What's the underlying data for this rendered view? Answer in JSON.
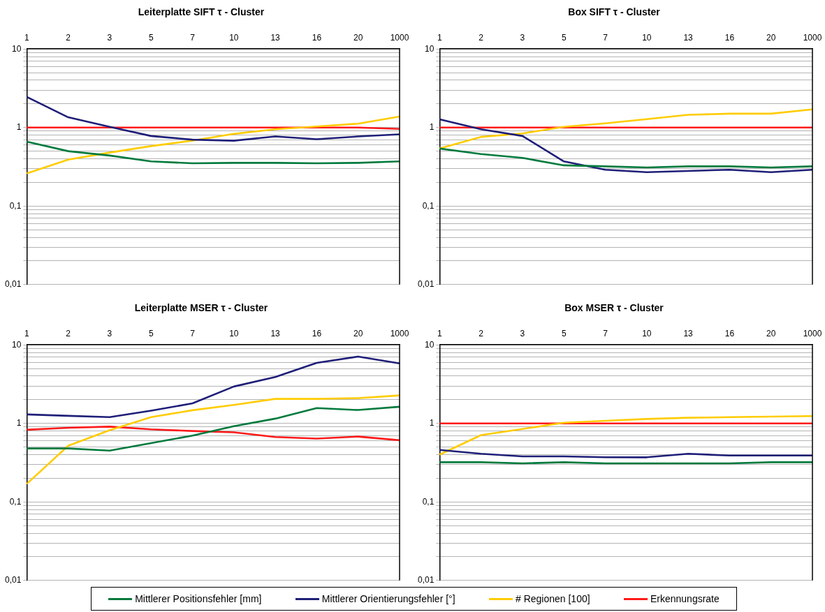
{
  "chart_data": [
    {
      "type": "line",
      "title": "Leiterplatte SIFT τ - Cluster",
      "categories": [
        "1",
        "2",
        "3",
        "5",
        "7",
        "10",
        "13",
        "16",
        "20",
        "1000"
      ],
      "log": true,
      "grid": "y",
      "legend": "bottom",
      "marker": "none",
      "ylim": [
        0.01,
        10
      ],
      "yticks": [
        {
          "value": 0.01,
          "label": "0,01"
        },
        {
          "value": 0.02,
          "label": null
        },
        {
          "value": 0.03,
          "label": null
        },
        {
          "value": 0.04,
          "label": null
        },
        {
          "value": 0.05,
          "label": null
        },
        {
          "value": 0.06,
          "label": null
        },
        {
          "value": 0.07,
          "label": null
        },
        {
          "value": 0.08,
          "label": null
        },
        {
          "value": 0.09,
          "label": null
        },
        {
          "value": 0.1,
          "label": "0,1"
        },
        {
          "value": 0.2,
          "label": null
        },
        {
          "value": 0.3,
          "label": null
        },
        {
          "value": 0.4,
          "label": null
        },
        {
          "value": 0.5,
          "label": null
        },
        {
          "value": 0.6,
          "label": null
        },
        {
          "value": 0.7,
          "label": null
        },
        {
          "value": 0.8,
          "label": null
        },
        {
          "value": 0.9,
          "label": null
        },
        {
          "value": 1,
          "label": "1"
        },
        {
          "value": 2,
          "label": null
        },
        {
          "value": 3,
          "label": null
        },
        {
          "value": 4,
          "label": null
        },
        {
          "value": 5,
          "label": null
        },
        {
          "value": 6,
          "label": null
        },
        {
          "value": 7,
          "label": null
        },
        {
          "value": 8,
          "label": null
        },
        {
          "value": 9,
          "label": null
        },
        {
          "value": 10,
          "label": "10"
        }
      ],
      "series": [
        {
          "name": "Mittlerer Positionsfehler [mm]",
          "color": "#007a3d",
          "values": [
            0.66,
            0.5,
            0.44,
            0.37,
            0.35,
            0.355,
            0.355,
            0.35,
            0.355,
            0.37
          ]
        },
        {
          "name": "Mittlerer Orientierungsfehler [°]",
          "color": "#1f1f78",
          "values": [
            2.45,
            1.35,
            1.02,
            0.78,
            0.7,
            0.68,
            0.77,
            0.71,
            0.77,
            0.82
          ]
        },
        {
          "name": "# Regionen [100]",
          "color": "#ffcc00",
          "values": [
            0.26,
            0.39,
            0.48,
            0.58,
            0.68,
            0.83,
            0.95,
            1.03,
            1.12,
            1.38
          ]
        },
        {
          "name": "Erkennungsrate",
          "color": "#ff1a1a",
          "values": [
            1,
            1,
            1,
            1,
            1,
            1,
            1,
            1,
            1,
            0.96
          ]
        }
      ]
    },
    {
      "type": "line",
      "title": "Box SIFT τ - Cluster",
      "categories": [
        "1",
        "2",
        "3",
        "5",
        "7",
        "10",
        "13",
        "16",
        "20",
        "1000"
      ],
      "log": true,
      "grid": "y",
      "legend": false,
      "marker": "none",
      "ylim": [
        0.01,
        10
      ],
      "yticks": [
        {
          "value": 0.01,
          "label": "0,01"
        },
        {
          "value": 0.02,
          "label": null
        },
        {
          "value": 0.03,
          "label": null
        },
        {
          "value": 0.04,
          "label": null
        },
        {
          "value": 0.05,
          "label": null
        },
        {
          "value": 0.06,
          "label": null
        },
        {
          "value": 0.07,
          "label": null
        },
        {
          "value": 0.08,
          "label": null
        },
        {
          "value": 0.09,
          "label": null
        },
        {
          "value": 0.1,
          "label": "0,1"
        },
        {
          "value": 0.2,
          "label": null
        },
        {
          "value": 0.3,
          "label": null
        },
        {
          "value": 0.4,
          "label": null
        },
        {
          "value": 0.5,
          "label": null
        },
        {
          "value": 0.6,
          "label": null
        },
        {
          "value": 0.7,
          "label": null
        },
        {
          "value": 0.8,
          "label": null
        },
        {
          "value": 0.9,
          "label": null
        },
        {
          "value": 1,
          "label": "1"
        },
        {
          "value": 2,
          "label": null
        },
        {
          "value": 3,
          "label": null
        },
        {
          "value": 4,
          "label": null
        },
        {
          "value": 5,
          "label": null
        },
        {
          "value": 6,
          "label": null
        },
        {
          "value": 7,
          "label": null
        },
        {
          "value": 8,
          "label": null
        },
        {
          "value": 9,
          "label": null
        },
        {
          "value": 10,
          "label": "10"
        }
      ],
      "series": [
        {
          "color": "#007a3d",
          "values": [
            0.54,
            0.46,
            0.41,
            0.33,
            0.32,
            0.31,
            0.32,
            0.32,
            0.31,
            0.32
          ]
        },
        {
          "color": "#1f1f78",
          "values": [
            1.27,
            0.95,
            0.78,
            0.37,
            0.29,
            0.27,
            0.28,
            0.29,
            0.27,
            0.29
          ]
        },
        {
          "color": "#ffcc00",
          "values": [
            0.54,
            0.76,
            0.84,
            1.02,
            1.13,
            1.28,
            1.45,
            1.5,
            1.5,
            1.7
          ]
        },
        {
          "color": "#ff1a1a",
          "values": [
            1,
            1,
            1,
            1,
            1,
            1,
            1,
            1,
            1,
            1
          ]
        }
      ]
    },
    {
      "type": "line",
      "title": "Leiterplatte MSER τ - Cluster",
      "categories": [
        "1",
        "2",
        "3",
        "5",
        "7",
        "10",
        "13",
        "16",
        "20",
        "1000"
      ],
      "log": true,
      "grid": "y",
      "legend": false,
      "marker": "none",
      "ylim": [
        0.01,
        10
      ],
      "yticks": [
        {
          "value": 0.01,
          "label": "0,01"
        },
        {
          "value": 0.02,
          "label": null
        },
        {
          "value": 0.03,
          "label": null
        },
        {
          "value": 0.04,
          "label": null
        },
        {
          "value": 0.05,
          "label": null
        },
        {
          "value": 0.06,
          "label": null
        },
        {
          "value": 0.07,
          "label": null
        },
        {
          "value": 0.08,
          "label": null
        },
        {
          "value": 0.09,
          "label": null
        },
        {
          "value": 0.1,
          "label": "0,1"
        },
        {
          "value": 0.2,
          "label": null
        },
        {
          "value": 0.3,
          "label": null
        },
        {
          "value": 0.4,
          "label": null
        },
        {
          "value": 0.5,
          "label": null
        },
        {
          "value": 0.6,
          "label": null
        },
        {
          "value": 0.7,
          "label": null
        },
        {
          "value": 0.8,
          "label": null
        },
        {
          "value": 0.9,
          "label": null
        },
        {
          "value": 1,
          "label": "1"
        },
        {
          "value": 2,
          "label": null
        },
        {
          "value": 3,
          "label": null
        },
        {
          "value": 4,
          "label": null
        },
        {
          "value": 5,
          "label": null
        },
        {
          "value": 6,
          "label": null
        },
        {
          "value": 7,
          "label": null
        },
        {
          "value": 8,
          "label": null
        },
        {
          "value": 9,
          "label": null
        },
        {
          "value": 10,
          "label": "10"
        }
      ],
      "series": [
        {
          "color": "#007a3d",
          "values": [
            0.48,
            0.48,
            0.45,
            0.56,
            0.7,
            0.92,
            1.15,
            1.57,
            1.48,
            1.63
          ]
        },
        {
          "color": "#1f1f78",
          "values": [
            1.3,
            1.25,
            1.2,
            1.45,
            1.8,
            2.95,
            3.9,
            5.9,
            7.1,
            5.8
          ]
        },
        {
          "color": "#ffcc00",
          "values": [
            0.17,
            0.52,
            0.82,
            1.2,
            1.47,
            1.72,
            2.05,
            2.05,
            2.1,
            2.27
          ]
        },
        {
          "color": "#ff1a1a",
          "values": [
            0.83,
            0.88,
            0.91,
            0.84,
            0.8,
            0.77,
            0.67,
            0.64,
            0.68,
            0.61
          ]
        }
      ]
    },
    {
      "type": "line",
      "title": "Box MSER τ - Cluster",
      "categories": [
        "1",
        "2",
        "3",
        "5",
        "7",
        "10",
        "13",
        "16",
        "20",
        "1000"
      ],
      "log": true,
      "grid": "y",
      "legend": false,
      "marker": "none",
      "ylim": [
        0.01,
        10
      ],
      "yticks": [
        {
          "value": 0.01,
          "label": "0,01"
        },
        {
          "value": 0.02,
          "label": null
        },
        {
          "value": 0.03,
          "label": null
        },
        {
          "value": 0.04,
          "label": null
        },
        {
          "value": 0.05,
          "label": null
        },
        {
          "value": 0.06,
          "label": null
        },
        {
          "value": 0.07,
          "label": null
        },
        {
          "value": 0.08,
          "label": null
        },
        {
          "value": 0.09,
          "label": null
        },
        {
          "value": 0.1,
          "label": "0,1"
        },
        {
          "value": 0.2,
          "label": null
        },
        {
          "value": 0.3,
          "label": null
        },
        {
          "value": 0.4,
          "label": null
        },
        {
          "value": 0.5,
          "label": null
        },
        {
          "value": 0.6,
          "label": null
        },
        {
          "value": 0.7,
          "label": null
        },
        {
          "value": 0.8,
          "label": null
        },
        {
          "value": 0.9,
          "label": null
        },
        {
          "value": 1,
          "label": "1"
        },
        {
          "value": 2,
          "label": null
        },
        {
          "value": 3,
          "label": null
        },
        {
          "value": 4,
          "label": null
        },
        {
          "value": 5,
          "label": null
        },
        {
          "value": 6,
          "label": null
        },
        {
          "value": 7,
          "label": null
        },
        {
          "value": 8,
          "label": null
        },
        {
          "value": 9,
          "label": null
        },
        {
          "value": 10,
          "label": "10"
        }
      ],
      "series": [
        {
          "color": "#007a3d",
          "values": [
            0.32,
            0.32,
            0.31,
            0.32,
            0.31,
            0.31,
            0.31,
            0.31,
            0.32,
            0.32
          ]
        },
        {
          "color": "#1f1f78",
          "values": [
            0.46,
            0.41,
            0.38,
            0.38,
            0.37,
            0.37,
            0.41,
            0.39,
            0.39,
            0.39
          ]
        },
        {
          "color": "#ffcc00",
          "values": [
            0.4,
            0.71,
            0.85,
            1.02,
            1.08,
            1.14,
            1.18,
            1.2,
            1.22,
            1.24
          ]
        },
        {
          "color": "#ff1a1a",
          "values": [
            1,
            1,
            1,
            1,
            1,
            1,
            1,
            1,
            1,
            1
          ]
        }
      ]
    }
  ]
}
